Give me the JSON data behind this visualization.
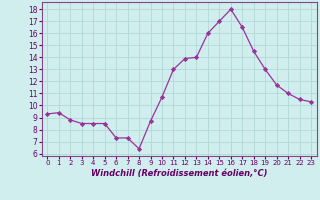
{
  "x": [
    0,
    1,
    2,
    3,
    4,
    5,
    6,
    7,
    8,
    9,
    10,
    11,
    12,
    13,
    14,
    15,
    16,
    17,
    18,
    19,
    20,
    21,
    22,
    23
  ],
  "y": [
    9.3,
    9.4,
    8.8,
    8.5,
    8.5,
    8.5,
    7.3,
    7.3,
    6.4,
    8.7,
    10.7,
    13.0,
    13.9,
    14.0,
    16.0,
    17.0,
    18.0,
    16.5,
    14.5,
    13.0,
    11.7,
    11.0,
    10.5,
    10.3
  ],
  "line_color": "#993399",
  "marker": "D",
  "marker_size": 2.2,
  "bg_color": "#d0eeee",
  "grid_color": "#b0d8d8",
  "xlabel": "Windchill (Refroidissement éolien,°C)",
  "ylabel_ticks": [
    6,
    7,
    8,
    9,
    10,
    11,
    12,
    13,
    14,
    15,
    16,
    17,
    18
  ],
  "xlim": [
    -0.5,
    23.5
  ],
  "ylim": [
    5.8,
    18.6
  ],
  "tick_color": "#660066",
  "label_color": "#660066",
  "spine_color": "#884488"
}
